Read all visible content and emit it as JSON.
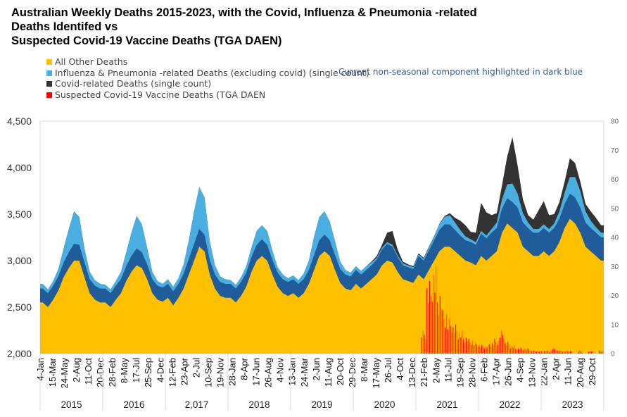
{
  "chart_data": {
    "type": "area",
    "title_lines": [
      "Australian Weekly Deaths 2015-2023, with the Covid, Influenza & Pneumonia -related",
      "Deaths Identifed vs",
      "Suspected Covid-19 Vaccine Deaths (TGA DAEN)"
    ],
    "annotation": "Current non-seasonal component highlighted in dark blue",
    "legend": [
      {
        "label": "All Other Deaths",
        "color": "#ffc000"
      },
      {
        "label": "Influenza & Pneumonia -related Deaths (excluding covid) (single count)",
        "color": "#4aaee0"
      },
      {
        "label": "Covid-related Deaths (single count)",
        "color": "#333333"
      },
      {
        "label": "Suspected Covid-19 Vaccine Deaths (TGA DAEN",
        "color": "#ff0000"
      }
    ],
    "colors": {
      "other": "#ffc000",
      "flu_seasonal": "#4aaee0",
      "flu_nonseasonal": "#1f5c99",
      "covid": "#333333",
      "vaccine": "#ff0000"
    },
    "y_left": {
      "min": 2000,
      "max": 4500,
      "ticks": [
        "2,000",
        "2,500",
        "3,000",
        "3,500",
        "4,000",
        "4,500"
      ]
    },
    "y_right": {
      "min": 0,
      "max": 80,
      "ticks": [
        "0",
        "10",
        "20",
        "30",
        "40",
        "50",
        "60",
        "70",
        "80"
      ]
    },
    "years": [
      "2015",
      "2016",
      "2,017",
      "2018",
      "2019",
      "2020",
      "2021",
      "2022",
      "2023"
    ],
    "x_tick_labels": [
      "4-Jan",
      "15-Mar",
      "24-May",
      "2-Aug",
      "11-Oct",
      "20-Dec",
      "28-Feb",
      "8-May",
      "17-Jul",
      "25-Sep",
      "4-Dec",
      "12-Feb",
      "23-Apr",
      "2-Jul",
      "10-Sep",
      "19-Nov",
      "28-Jan",
      "8-Apr",
      "17-Jun",
      "26-Aug",
      "4-Nov",
      "13-Jan",
      "24-Mar",
      "2-Jun",
      "11-Aug",
      "20-Oct",
      "29-Dec",
      "8-Mar",
      "17-May",
      "26-Jul",
      "4-Oct",
      "13-Dec",
      "21-Feb",
      "2-May",
      "11-Jul",
      "19-Sep",
      "28-Nov",
      "6-Feb",
      "17-Apr",
      "26-Jun",
      "4-Sep",
      "13-Nov",
      "22-Jan",
      "2-Apr",
      "11-Jun",
      "20-Aug",
      "29-Oct"
    ],
    "x_tick_interval_weeks": 10,
    "resolution": "monthly (approx.)",
    "series": {
      "all_other": [
        2550,
        2500,
        2580,
        2680,
        2820,
        2920,
        3000,
        3000,
        2820,
        2650,
        2580,
        2550,
        2550,
        2500,
        2580,
        2650,
        2780,
        2880,
        2950,
        2920,
        2800,
        2650,
        2580,
        2560,
        2600,
        2520,
        2600,
        2700,
        2850,
        3000,
        3150,
        3100,
        2850,
        2700,
        2620,
        2600,
        2600,
        2550,
        2620,
        2720,
        2880,
        3000,
        3050,
        3000,
        2850,
        2720,
        2650,
        2620,
        2650,
        2600,
        2650,
        2750,
        2900,
        3050,
        3100,
        3050,
        2900,
        2760,
        2700,
        2680,
        2750,
        2700,
        2750,
        2800,
        2850,
        2950,
        3000,
        2980,
        2880,
        2800,
        2780,
        2760,
        2850,
        2800,
        2900,
        3000,
        3100,
        3150,
        3150,
        3100,
        3050,
        3000,
        2980,
        2950,
        3050,
        3000,
        3050,
        3100,
        3300,
        3400,
        3350,
        3300,
        3150,
        3100,
        3050,
        3050,
        3100,
        3050,
        3100,
        3200,
        3350,
        3450,
        3400,
        3300,
        3150,
        3100,
        3050,
        3000
      ],
      "flu_nonseasonal": [
        150,
        150,
        150,
        150,
        160,
        170,
        180,
        170,
        160,
        150,
        150,
        150,
        150,
        150,
        150,
        150,
        160,
        170,
        180,
        170,
        160,
        150,
        150,
        150,
        150,
        150,
        150,
        160,
        170,
        180,
        190,
        180,
        160,
        150,
        150,
        150,
        150,
        150,
        150,
        150,
        160,
        170,
        180,
        170,
        160,
        150,
        150,
        150,
        150,
        150,
        150,
        150,
        160,
        170,
        180,
        170,
        160,
        150,
        150,
        150,
        150,
        150,
        150,
        150,
        160,
        170,
        180,
        170,
        160,
        150,
        150,
        150,
        200,
        200,
        210,
        220,
        230,
        240,
        240,
        230,
        220,
        220,
        220,
        220,
        240,
        240,
        250,
        250,
        260,
        270,
        280,
        270,
        260,
        250,
        250,
        250,
        250,
        250,
        250,
        250,
        260,
        270,
        280,
        270,
        260,
        250,
        250,
        250
      ],
      "flu_seasonal": [
        50,
        40,
        50,
        80,
        150,
        250,
        350,
        300,
        150,
        80,
        60,
        50,
        40,
        40,
        50,
        80,
        150,
        250,
        350,
        300,
        180,
        80,
        50,
        40,
        50,
        50,
        60,
        100,
        200,
        350,
        450,
        400,
        200,
        100,
        60,
        50,
        40,
        40,
        50,
        70,
        100,
        150,
        150,
        150,
        100,
        60,
        50,
        40,
        40,
        40,
        60,
        100,
        200,
        250,
        250,
        200,
        150,
        80,
        50,
        40,
        40,
        40,
        40,
        30,
        20,
        20,
        20,
        20,
        20,
        20,
        20,
        20,
        20,
        20,
        30,
        40,
        60,
        80,
        100,
        80,
        60,
        40,
        30,
        30,
        30,
        30,
        40,
        60,
        100,
        150,
        200,
        150,
        100,
        60,
        40,
        40,
        40,
        40,
        50,
        80,
        120,
        180,
        220,
        180,
        120,
        80,
        60,
        50
      ],
      "covid": [
        0,
        0,
        0,
        0,
        0,
        0,
        0,
        0,
        0,
        0,
        0,
        0,
        0,
        0,
        0,
        0,
        0,
        0,
        0,
        0,
        0,
        0,
        0,
        0,
        0,
        0,
        0,
        0,
        0,
        0,
        0,
        0,
        0,
        0,
        0,
        0,
        0,
        0,
        0,
        0,
        0,
        0,
        0,
        0,
        0,
        0,
        0,
        0,
        0,
        0,
        0,
        0,
        0,
        0,
        0,
        0,
        0,
        0,
        0,
        0,
        0,
        0,
        0,
        10,
        20,
        30,
        100,
        150,
        60,
        20,
        10,
        10,
        10,
        10,
        10,
        5,
        5,
        10,
        20,
        50,
        100,
        120,
        80,
        100,
        300,
        250,
        150,
        100,
        150,
        300,
        500,
        300,
        150,
        80,
        100,
        200,
        250,
        150,
        100,
        100,
        120,
        200,
        150,
        100,
        80,
        100,
        100,
        80
      ],
      "vaccine_deaths_right_axis": [
        0,
        0,
        0,
        0,
        0,
        0,
        0,
        0,
        0,
        0,
        0,
        0,
        0,
        0,
        0,
        0,
        0,
        0,
        0,
        0,
        0,
        0,
        0,
        0,
        0,
        0,
        0,
        0,
        0,
        0,
        0,
        0,
        0,
        0,
        0,
        0,
        0,
        0,
        0,
        0,
        0,
        0,
        0,
        0,
        0,
        0,
        0,
        0,
        0,
        0,
        0,
        0,
        0,
        0,
        0,
        0,
        0,
        0,
        0,
        0,
        0,
        0,
        0,
        0,
        0,
        0,
        0,
        0,
        0,
        0,
        0,
        0,
        0,
        8,
        25,
        30,
        22,
        15,
        12,
        10,
        8,
        6,
        5,
        4,
        3,
        3,
        4,
        5,
        8,
        4,
        3,
        2,
        2,
        2,
        1,
        1,
        1,
        1,
        2,
        1,
        1,
        1,
        0,
        1,
        0,
        1,
        0,
        1
      ]
    }
  }
}
